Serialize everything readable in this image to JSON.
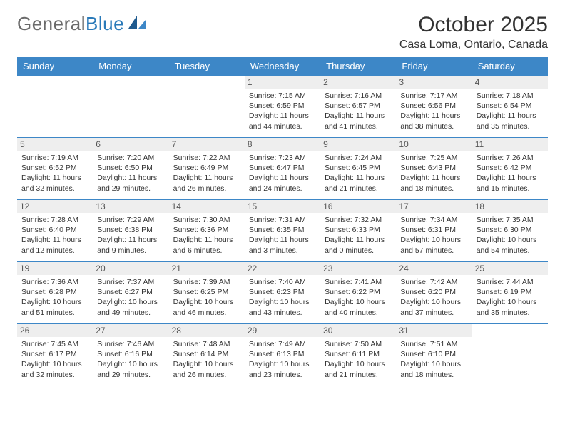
{
  "logo": {
    "text1": "General",
    "text2": "Blue"
  },
  "title": "October 2025",
  "location": "Casa Loma, Ontario, Canada",
  "colors": {
    "header_bg": "#3d87c7",
    "header_text": "#ffffff",
    "daynum_bg": "#eeeeee",
    "row_border": "#3d87c7",
    "body_text": "#333333",
    "logo_gray": "#6a6a6a",
    "logo_blue": "#2a7ab9"
  },
  "day_headers": [
    "Sunday",
    "Monday",
    "Tuesday",
    "Wednesday",
    "Thursday",
    "Friday",
    "Saturday"
  ],
  "weeks": [
    [
      {
        "n": "",
        "sr": "",
        "ss": "",
        "dl": ""
      },
      {
        "n": "",
        "sr": "",
        "ss": "",
        "dl": ""
      },
      {
        "n": "",
        "sr": "",
        "ss": "",
        "dl": ""
      },
      {
        "n": "1",
        "sr": "Sunrise: 7:15 AM",
        "ss": "Sunset: 6:59 PM",
        "dl": "Daylight: 11 hours and 44 minutes."
      },
      {
        "n": "2",
        "sr": "Sunrise: 7:16 AM",
        "ss": "Sunset: 6:57 PM",
        "dl": "Daylight: 11 hours and 41 minutes."
      },
      {
        "n": "3",
        "sr": "Sunrise: 7:17 AM",
        "ss": "Sunset: 6:56 PM",
        "dl": "Daylight: 11 hours and 38 minutes."
      },
      {
        "n": "4",
        "sr": "Sunrise: 7:18 AM",
        "ss": "Sunset: 6:54 PM",
        "dl": "Daylight: 11 hours and 35 minutes."
      }
    ],
    [
      {
        "n": "5",
        "sr": "Sunrise: 7:19 AM",
        "ss": "Sunset: 6:52 PM",
        "dl": "Daylight: 11 hours and 32 minutes."
      },
      {
        "n": "6",
        "sr": "Sunrise: 7:20 AM",
        "ss": "Sunset: 6:50 PM",
        "dl": "Daylight: 11 hours and 29 minutes."
      },
      {
        "n": "7",
        "sr": "Sunrise: 7:22 AM",
        "ss": "Sunset: 6:49 PM",
        "dl": "Daylight: 11 hours and 26 minutes."
      },
      {
        "n": "8",
        "sr": "Sunrise: 7:23 AM",
        "ss": "Sunset: 6:47 PM",
        "dl": "Daylight: 11 hours and 24 minutes."
      },
      {
        "n": "9",
        "sr": "Sunrise: 7:24 AM",
        "ss": "Sunset: 6:45 PM",
        "dl": "Daylight: 11 hours and 21 minutes."
      },
      {
        "n": "10",
        "sr": "Sunrise: 7:25 AM",
        "ss": "Sunset: 6:43 PM",
        "dl": "Daylight: 11 hours and 18 minutes."
      },
      {
        "n": "11",
        "sr": "Sunrise: 7:26 AM",
        "ss": "Sunset: 6:42 PM",
        "dl": "Daylight: 11 hours and 15 minutes."
      }
    ],
    [
      {
        "n": "12",
        "sr": "Sunrise: 7:28 AM",
        "ss": "Sunset: 6:40 PM",
        "dl": "Daylight: 11 hours and 12 minutes."
      },
      {
        "n": "13",
        "sr": "Sunrise: 7:29 AM",
        "ss": "Sunset: 6:38 PM",
        "dl": "Daylight: 11 hours and 9 minutes."
      },
      {
        "n": "14",
        "sr": "Sunrise: 7:30 AM",
        "ss": "Sunset: 6:36 PM",
        "dl": "Daylight: 11 hours and 6 minutes."
      },
      {
        "n": "15",
        "sr": "Sunrise: 7:31 AM",
        "ss": "Sunset: 6:35 PM",
        "dl": "Daylight: 11 hours and 3 minutes."
      },
      {
        "n": "16",
        "sr": "Sunrise: 7:32 AM",
        "ss": "Sunset: 6:33 PM",
        "dl": "Daylight: 11 hours and 0 minutes."
      },
      {
        "n": "17",
        "sr": "Sunrise: 7:34 AM",
        "ss": "Sunset: 6:31 PM",
        "dl": "Daylight: 10 hours and 57 minutes."
      },
      {
        "n": "18",
        "sr": "Sunrise: 7:35 AM",
        "ss": "Sunset: 6:30 PM",
        "dl": "Daylight: 10 hours and 54 minutes."
      }
    ],
    [
      {
        "n": "19",
        "sr": "Sunrise: 7:36 AM",
        "ss": "Sunset: 6:28 PM",
        "dl": "Daylight: 10 hours and 51 minutes."
      },
      {
        "n": "20",
        "sr": "Sunrise: 7:37 AM",
        "ss": "Sunset: 6:27 PM",
        "dl": "Daylight: 10 hours and 49 minutes."
      },
      {
        "n": "21",
        "sr": "Sunrise: 7:39 AM",
        "ss": "Sunset: 6:25 PM",
        "dl": "Daylight: 10 hours and 46 minutes."
      },
      {
        "n": "22",
        "sr": "Sunrise: 7:40 AM",
        "ss": "Sunset: 6:23 PM",
        "dl": "Daylight: 10 hours and 43 minutes."
      },
      {
        "n": "23",
        "sr": "Sunrise: 7:41 AM",
        "ss": "Sunset: 6:22 PM",
        "dl": "Daylight: 10 hours and 40 minutes."
      },
      {
        "n": "24",
        "sr": "Sunrise: 7:42 AM",
        "ss": "Sunset: 6:20 PM",
        "dl": "Daylight: 10 hours and 37 minutes."
      },
      {
        "n": "25",
        "sr": "Sunrise: 7:44 AM",
        "ss": "Sunset: 6:19 PM",
        "dl": "Daylight: 10 hours and 35 minutes."
      }
    ],
    [
      {
        "n": "26",
        "sr": "Sunrise: 7:45 AM",
        "ss": "Sunset: 6:17 PM",
        "dl": "Daylight: 10 hours and 32 minutes."
      },
      {
        "n": "27",
        "sr": "Sunrise: 7:46 AM",
        "ss": "Sunset: 6:16 PM",
        "dl": "Daylight: 10 hours and 29 minutes."
      },
      {
        "n": "28",
        "sr": "Sunrise: 7:48 AM",
        "ss": "Sunset: 6:14 PM",
        "dl": "Daylight: 10 hours and 26 minutes."
      },
      {
        "n": "29",
        "sr": "Sunrise: 7:49 AM",
        "ss": "Sunset: 6:13 PM",
        "dl": "Daylight: 10 hours and 23 minutes."
      },
      {
        "n": "30",
        "sr": "Sunrise: 7:50 AM",
        "ss": "Sunset: 6:11 PM",
        "dl": "Daylight: 10 hours and 21 minutes."
      },
      {
        "n": "31",
        "sr": "Sunrise: 7:51 AM",
        "ss": "Sunset: 6:10 PM",
        "dl": "Daylight: 10 hours and 18 minutes."
      },
      {
        "n": "",
        "sr": "",
        "ss": "",
        "dl": ""
      }
    ]
  ]
}
